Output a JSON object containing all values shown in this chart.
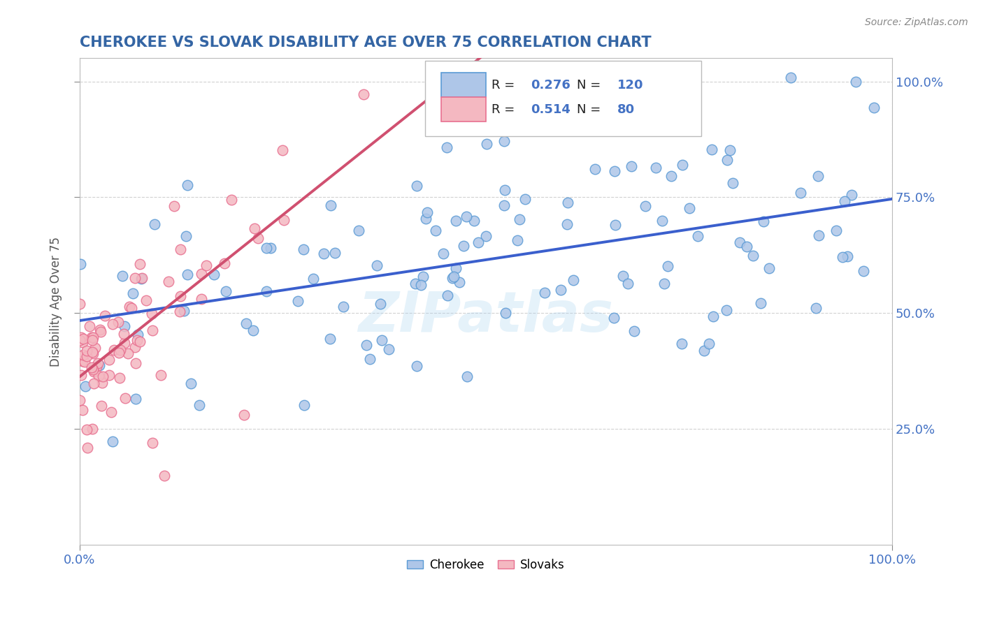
{
  "title": "CHEROKEE VS SLOVAK DISABILITY AGE OVER 75 CORRELATION CHART",
  "source_text": "Source: ZipAtlas.com",
  "ylabel": "Disability Age Over 75",
  "legend_labels": [
    "Cherokee",
    "Slovaks"
  ],
  "cherokee_R": "0.276",
  "cherokee_N": "120",
  "slovak_R": "0.514",
  "slovak_N": "80",
  "cherokee_color": "#aec6e8",
  "cherokee_edge": "#5b9bd5",
  "slovak_color": "#f4b8c1",
  "slovak_edge": "#e87090",
  "trend_cherokee_color": "#3a5fcd",
  "trend_slovak_color": "#d05070",
  "watermark": "ZIPatlas",
  "background_color": "#ffffff",
  "grid_color": "#cccccc",
  "title_color": "#3465a4",
  "right_tick_color": "#4472c4",
  "bottom_tick_color": "#4472c4"
}
